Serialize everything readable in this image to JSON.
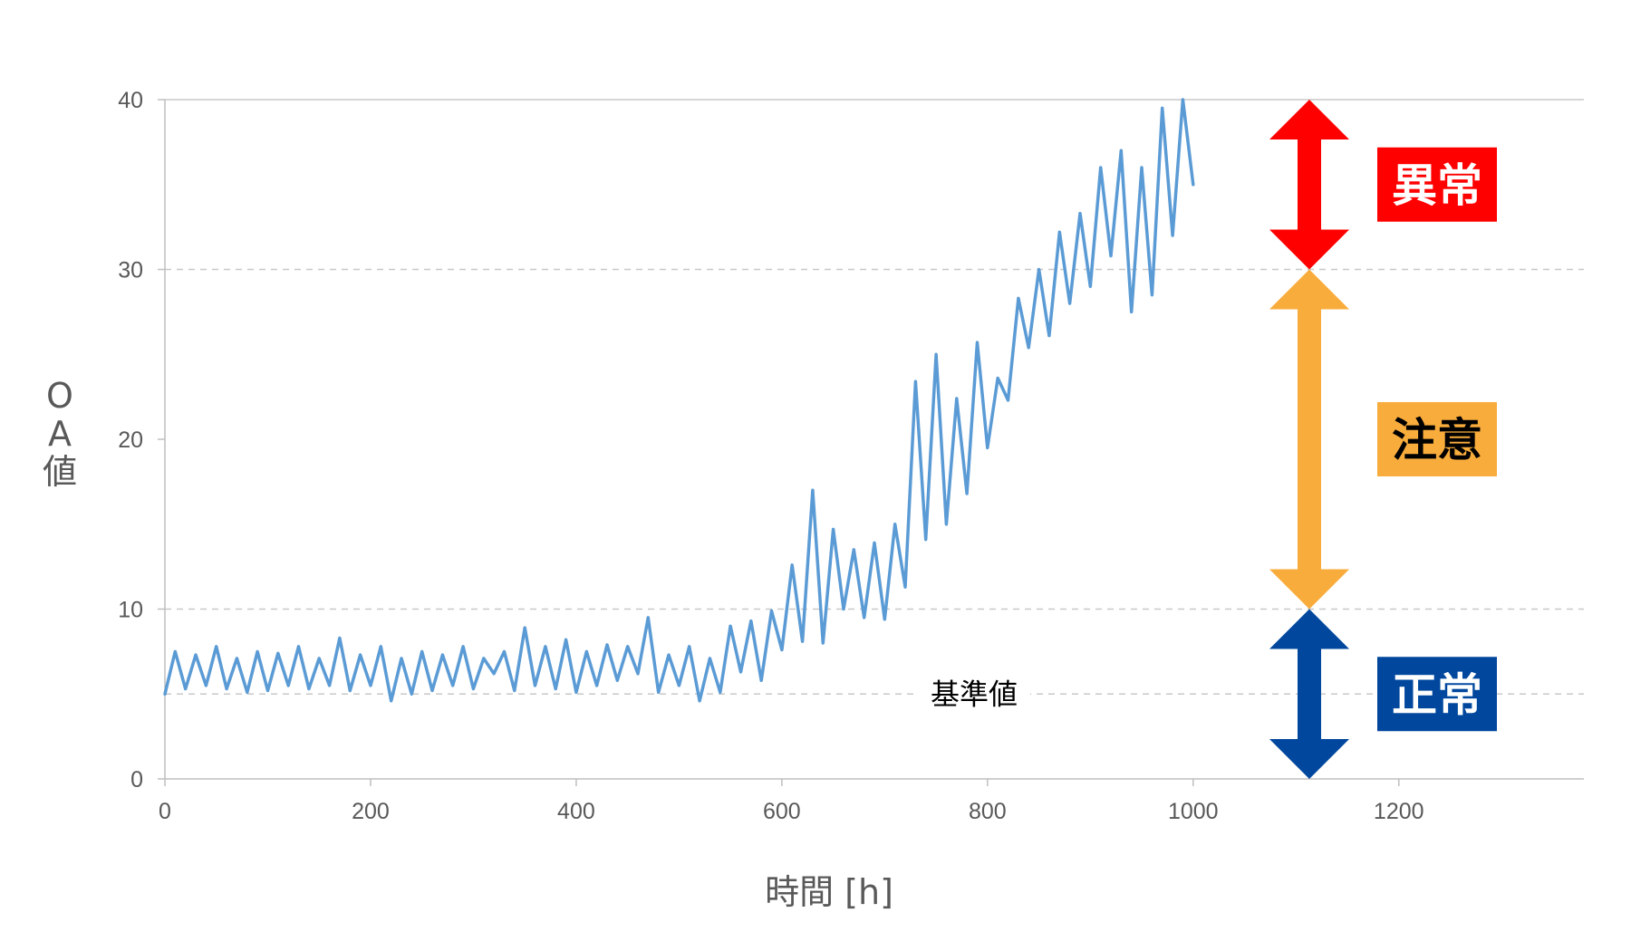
{
  "chart_data": {
    "type": "line",
    "title": "",
    "xlabel": "時間 [h]",
    "ylabel_lines": [
      "O",
      "A",
      "値"
    ],
    "xlim": [
      0,
      1380
    ],
    "ylim": [
      0,
      40
    ],
    "xticks": [
      0,
      200,
      400,
      600,
      800,
      1000,
      1200
    ],
    "yticks": [
      0,
      10,
      20,
      30,
      40
    ],
    "grid": {
      "y_dashed": [
        10,
        30
      ],
      "solid_top": 40
    },
    "line_color": "#5b9bd5",
    "series": [
      {
        "x": [
          0,
          10,
          20,
          30,
          40,
          50,
          60,
          70,
          80,
          90,
          100,
          110,
          120,
          130,
          140,
          150,
          160,
          170,
          180,
          190,
          200,
          210,
          220,
          230,
          240,
          250,
          260,
          270,
          280,
          290,
          300,
          310,
          320,
          330,
          340,
          350,
          360,
          370,
          380,
          390,
          400,
          410,
          420,
          430,
          440,
          450,
          460,
          470,
          480,
          490,
          500,
          510,
          520,
          530,
          540,
          550,
          560,
          570,
          580,
          590,
          600,
          610,
          620,
          630,
          640,
          650,
          660,
          670,
          680,
          690,
          700,
          710,
          720,
          730,
          740,
          750,
          760,
          770,
          780,
          790,
          800,
          810,
          820,
          830,
          840,
          850,
          860,
          870,
          880,
          890,
          900,
          910,
          920,
          930,
          940,
          950,
          960,
          970,
          980,
          990,
          1000
        ],
        "y": [
          5,
          7.5,
          5.3,
          7.3,
          5.5,
          7.8,
          5.3,
          7.1,
          5.1,
          7.5,
          5.2,
          7.4,
          5.5,
          7.8,
          5.3,
          7.1,
          5.5,
          8.3,
          5.2,
          7.3,
          5.5,
          7.8,
          4.6,
          7.1,
          5,
          7.5,
          5.2,
          7.3,
          5.5,
          7.8,
          5.3,
          7.1,
          6.2,
          7.5,
          5.2,
          8.9,
          5.5,
          7.8,
          5.3,
          8.2,
          5.1,
          7.5,
          5.5,
          7.9,
          5.8,
          7.8,
          6.2,
          9.5,
          5.1,
          7.3,
          5.5,
          7.8,
          4.6,
          7.1,
          5.1,
          9.0,
          6.3,
          9.3,
          5.8,
          9.9,
          7.6,
          12.6,
          8.1,
          17,
          8,
          14.7,
          10,
          13.5,
          9.5,
          13.9,
          9.4,
          15,
          11.3,
          23.4,
          14.1,
          25,
          15,
          22.4,
          16.8,
          25.7,
          19.5,
          23.6,
          22.3,
          28.3,
          25.4,
          30,
          26.1,
          32.2,
          28,
          33.3,
          29,
          36,
          30.8,
          37,
          27.5,
          36,
          28.5,
          39.5,
          32,
          40,
          35
        ]
      }
    ],
    "baseline": {
      "y": 5,
      "label": "基準値"
    },
    "zones": [
      {
        "label": "異常",
        "range": [
          30,
          40
        ],
        "color": "#ff0000",
        "text_color": "#ffffff"
      },
      {
        "label": "注意",
        "range": [
          10,
          30
        ],
        "color": "#f8ac3c",
        "text_color": "#000000"
      },
      {
        "label": "正常",
        "range": [
          0,
          10
        ],
        "color": "#00479d",
        "text_color": "#ffffff"
      }
    ]
  }
}
